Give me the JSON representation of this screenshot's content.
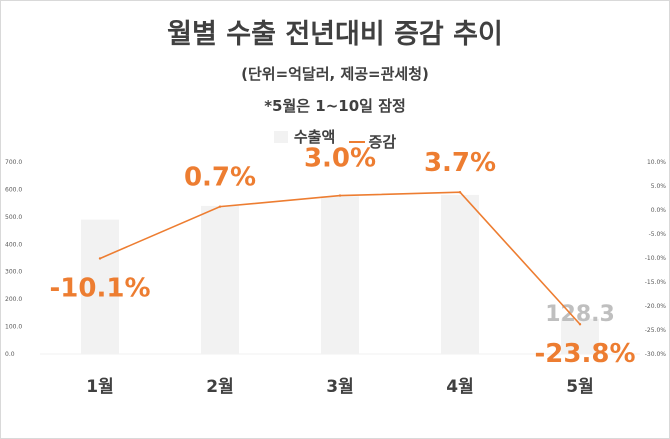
{
  "chart_data": {
    "type": "bar",
    "title": "월별 수출 전년대비 증감 추이",
    "subtitle": "(단위=억달러, 제공=관세청)",
    "note": "*5월은 1~10일 잠정",
    "categories": [
      "1월",
      "2월",
      "3월",
      "4월",
      "5월"
    ],
    "series": [
      {
        "name": "수출액",
        "type": "bar",
        "axis": "left",
        "values": [
          490,
          540,
          575,
          580,
          128.3
        ],
        "data_labels": [
          "",
          "",
          "",
          "",
          "128.3"
        ],
        "color": "#f2f2f2"
      },
      {
        "name": "증감",
        "type": "line",
        "axis": "right",
        "values": [
          -10.1,
          0.7,
          3.0,
          3.7,
          -23.8
        ],
        "data_labels": [
          "-10.1%",
          "0.7%",
          "3.0%",
          "3.7%",
          "-23.8%"
        ],
        "color": "#ed7d31"
      }
    ],
    "y_left": {
      "lim": [
        0,
        700
      ],
      "ticks": [
        0,
        100,
        200,
        300,
        400,
        500,
        600,
        700
      ],
      "tick_labels": [
        "0.0",
        "100.0",
        "200.0",
        "300.0",
        "400.0",
        "500.0",
        "600.0",
        "700.0"
      ]
    },
    "y_right": {
      "lim": [
        -30,
        10
      ],
      "ticks": [
        -30,
        -25,
        -20,
        -15,
        -10,
        -5,
        0,
        5,
        10
      ],
      "tick_labels": [
        "-30.0%",
        "-25.0%",
        "-20.0%",
        "-15.0%",
        "-10.0%",
        "-5.0%",
        "0.0%",
        "5.0%",
        "10.0%"
      ]
    },
    "grid": false,
    "legend": "top-center"
  }
}
